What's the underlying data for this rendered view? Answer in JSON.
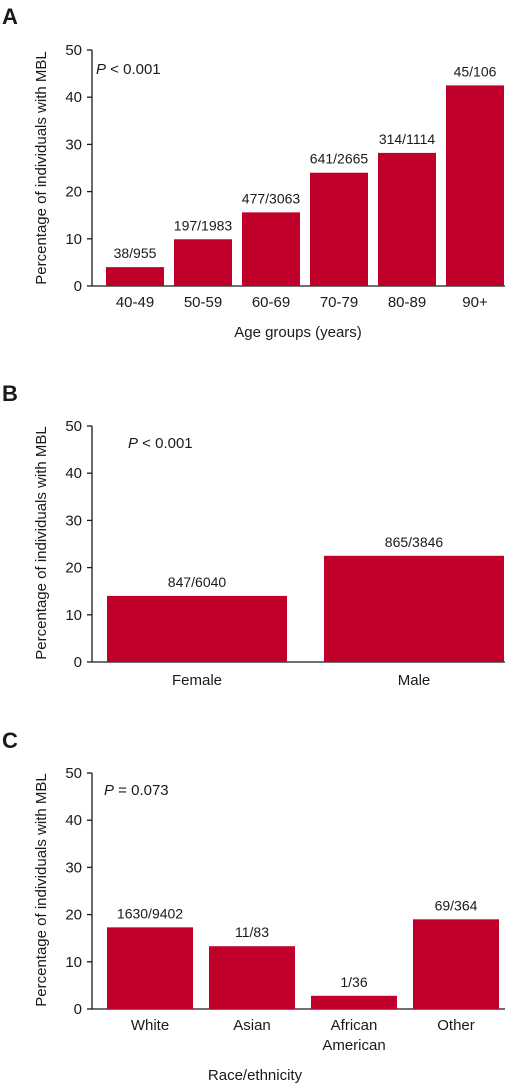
{
  "figure": {
    "bar_color": "#c0002a"
  },
  "chart_data": [
    {
      "panel": "A",
      "type": "bar",
      "ylabel": "Percentage of individuals with MBL",
      "xlabel": "Age groups (years)",
      "ylim": [
        0,
        50
      ],
      "yticks": [
        0,
        10,
        20,
        30,
        40,
        50
      ],
      "pvalue": {
        "symbol": "P",
        "text": " < 0.001"
      },
      "categories": [
        [
          "40-49"
        ],
        [
          "50-59"
        ],
        [
          "60-69"
        ],
        [
          "70-79"
        ],
        [
          "80-89"
        ],
        [
          "90+"
        ]
      ],
      "values": [
        4.0,
        9.9,
        15.6,
        24.0,
        28.2,
        42.5
      ],
      "labels": [
        "38/955",
        "197/1983",
        "477/3063",
        "641/2665",
        "314/1114",
        "45/106"
      ]
    },
    {
      "panel": "B",
      "type": "bar",
      "ylabel": "Percentage of individuals with MBL",
      "xlabel": "",
      "ylim": [
        0,
        50
      ],
      "yticks": [
        0,
        10,
        20,
        30,
        40,
        50
      ],
      "pvalue": {
        "symbol": "P",
        "text": " < 0.001"
      },
      "categories": [
        [
          "Female"
        ],
        [
          "Male"
        ]
      ],
      "values": [
        14.0,
        22.5
      ],
      "labels": [
        "847/6040",
        "865/3846"
      ]
    },
    {
      "panel": "C",
      "type": "bar",
      "ylabel": "Percentage of individuals with MBL",
      "xlabel": "Race/ethnicity",
      "ylim": [
        0,
        50
      ],
      "yticks": [
        0,
        10,
        20,
        30,
        40,
        50
      ],
      "pvalue": {
        "symbol": "P",
        "text": " = 0.073"
      },
      "categories": [
        [
          "White"
        ],
        [
          "Asian"
        ],
        [
          "African",
          "American"
        ],
        [
          "Other"
        ]
      ],
      "values": [
        17.3,
        13.3,
        2.8,
        19.0
      ],
      "labels": [
        "1630/9402",
        "11/83",
        "1/36",
        "69/364"
      ]
    }
  ]
}
